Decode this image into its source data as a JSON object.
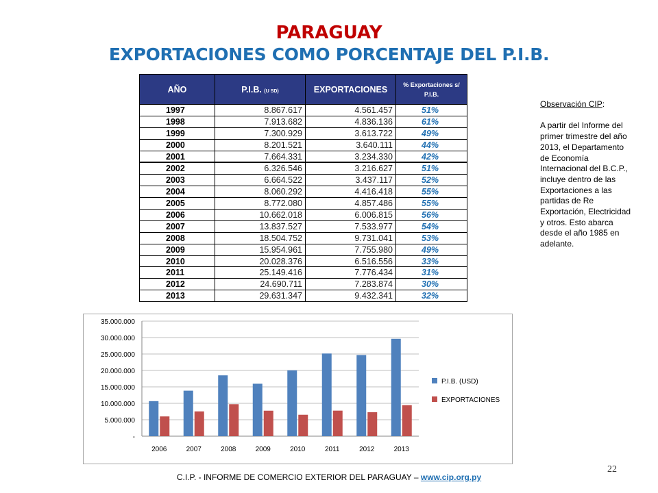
{
  "title": "PARAGUAY",
  "subtitle": "EXPORTACIONES COMO PORCENTAJE DEL P.I.B.",
  "table": {
    "headers": {
      "year": "AÑO",
      "pib": "P.I.B.",
      "pib_unit": "(U SD)",
      "exports": "EXPORTACIONES",
      "pct": "% Exportaciones s/ P.I.B."
    },
    "rows": [
      {
        "year": "1997",
        "pib": "8.867.617",
        "exports": "4.561.457",
        "pct": "51%"
      },
      {
        "year": "1998",
        "pib": "7.913.682",
        "exports": "4.836.136",
        "pct": "61%"
      },
      {
        "year": "1999",
        "pib": "7.300.929",
        "exports": "3.613.722",
        "pct": "49%"
      },
      {
        "year": "2000",
        "pib": "8.201.521",
        "exports": "3.640.111",
        "pct": "44%"
      },
      {
        "year": "2001",
        "pib": "7.664.331",
        "exports": "3.234.330",
        "pct": "42%"
      },
      {
        "year": "2002",
        "pib": "6.326.546",
        "exports": "3.216.627",
        "pct": "51%"
      },
      {
        "year": "2003",
        "pib": "6.664.522",
        "exports": "3.437.117",
        "pct": "52%"
      },
      {
        "year": "2004",
        "pib": "8.060.292",
        "exports": "4.416.418",
        "pct": "55%"
      },
      {
        "year": "2005",
        "pib": "8.772.080",
        "exports": "4.857.486",
        "pct": "55%"
      },
      {
        "year": "2006",
        "pib": "10.662.018",
        "exports": "6.006.815",
        "pct": "56%"
      },
      {
        "year": "2007",
        "pib": "13.837.527",
        "exports": "7.533.977",
        "pct": "54%"
      },
      {
        "year": "2008",
        "pib": "18.504.752",
        "exports": "9.731.041",
        "pct": "53%"
      },
      {
        "year": "2009",
        "pib": "15.954.961",
        "exports": "7.755.980",
        "pct": "49%"
      },
      {
        "year": "2010",
        "pib": "20.028.376",
        "exports": "6.516.556",
        "pct": "33%"
      },
      {
        "year": "2011",
        "pib": "25.149.416",
        "exports": "7.776.434",
        "pct": "31%"
      },
      {
        "year": "2012",
        "pib": "24.690.711",
        "exports": "7.283.874",
        "pct": "30%"
      },
      {
        "year": "2013",
        "pib": "29.631.347",
        "exports": "9.432.341",
        "pct": "32%"
      }
    ]
  },
  "observation": {
    "heading": "Observación CIP",
    "colon": ":",
    "text": "A partir del Informe del primer trimestre del año 2013, el Departamento de Economía Internacional del B.C.P., incluye dentro de las Exportaciones a las partidas de Re Exportación, Electricidad y otros. Esto abarca desde el año 1985 en adelante."
  },
  "chart_data": {
    "type": "bar",
    "categories": [
      "2006",
      "2007",
      "2008",
      "2009",
      "2010",
      "2011",
      "2012",
      "2013"
    ],
    "series": [
      {
        "name": "P.I.B. (USD)",
        "values": [
          10662018,
          13837527,
          18504752,
          15954961,
          20028376,
          25149416,
          24690711,
          29631347
        ],
        "color": "#4f81bd"
      },
      {
        "name": "EXPORTACIONES",
        "values": [
          6006815,
          7533977,
          9731041,
          7755980,
          6516556,
          7776434,
          7283874,
          9432341
        ],
        "color": "#c0504d"
      }
    ],
    "ylim": [
      0,
      35000000
    ],
    "yticks": [
      0,
      5000000,
      10000000,
      15000000,
      20000000,
      25000000,
      30000000,
      35000000
    ],
    "ytick_labels": [
      "-",
      "5.000.000",
      "10.000.000",
      "15.000.000",
      "20.000.000",
      "25.000.000",
      "30.000.000",
      "35.000.000"
    ],
    "grid": true,
    "legend": "right"
  },
  "footer": {
    "text": "C.I.P. - INFORME DE COMERCIO EXTERIOR DEL PARAGUAY – ",
    "link": "www.cip.org.py"
  },
  "page_number": "22"
}
